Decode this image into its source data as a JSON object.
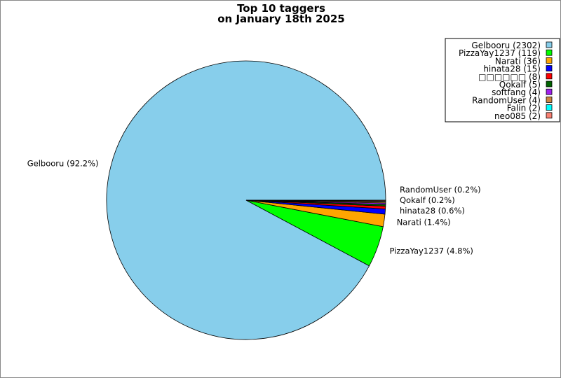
{
  "chart_data": {
    "type": "pie",
    "title": [
      "Top 10 taggers",
      "on January 18th 2025"
    ],
    "slices": [
      {
        "name": "Gelbooru",
        "value": 2302,
        "color": "#87ceeb",
        "legend": "Gelbooru (2302)",
        "label": "Gelbooru (92.2%)"
      },
      {
        "name": "PizzaYay1237",
        "value": 119,
        "color": "#00ff00",
        "legend": "PizzaYay1237 (119)",
        "label": "PizzaYay1237 (4.8%)"
      },
      {
        "name": "Narati",
        "value": 36,
        "color": "#ffa500",
        "legend": "Narati (36)",
        "label": "Narati (1.4%)"
      },
      {
        "name": "hinata28",
        "value": 15,
        "color": "#0000ff",
        "legend": "hinata28 (15)",
        "label": "hinata28 (0.6%)"
      },
      {
        "name": "□□□□□□",
        "value": 8,
        "color": "#ff0000",
        "legend": "□□□□□□ (8)",
        "label": ""
      },
      {
        "name": "Qokalf",
        "value": 5,
        "color": "#006400",
        "legend": "Qokalf (5)",
        "label": "Qokalf (0.2%)"
      },
      {
        "name": "softfang",
        "value": 4,
        "color": "#a020f0",
        "legend": "softfang (4)",
        "label": ""
      },
      {
        "name": "RandomUser",
        "value": 4,
        "color": "#cd853f",
        "legend": "RandomUser (4)",
        "label": "RandomUser (0.2%)"
      },
      {
        "name": "Falin",
        "value": 2,
        "color": "#00ffff",
        "legend": "Falin (2)",
        "label": ""
      },
      {
        "name": "neo085",
        "value": 2,
        "color": "#fa8072",
        "legend": "neo085 (2)",
        "label": ""
      }
    ],
    "start_angle_deg": 0,
    "direction": "counterclockwise",
    "legend_position": "top-right"
  }
}
